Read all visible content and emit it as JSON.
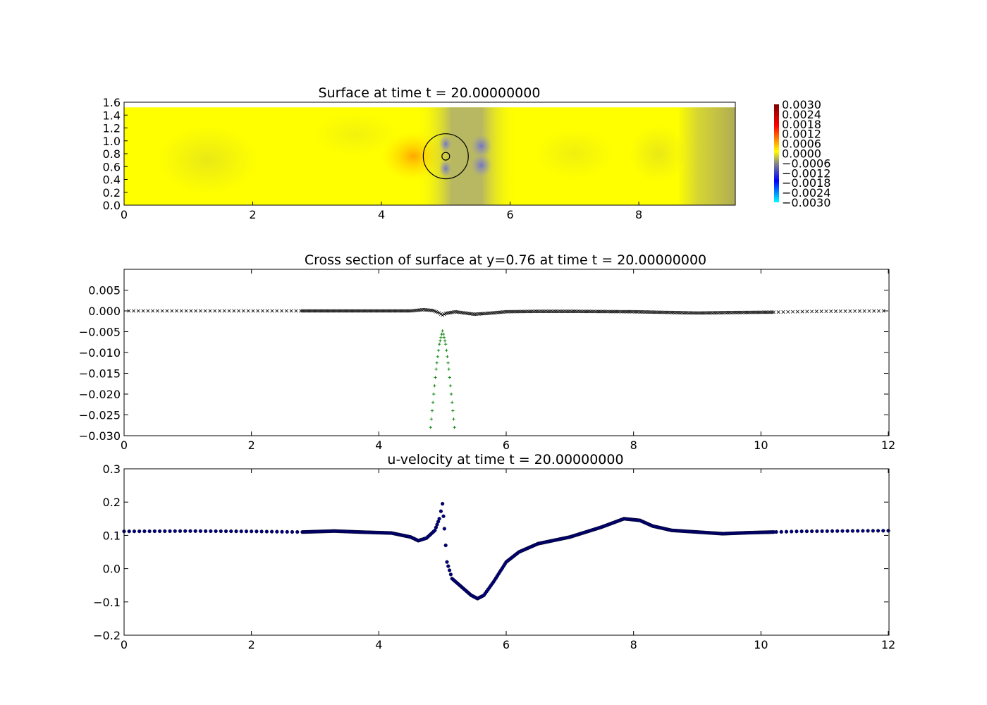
{
  "chart_data": [
    {
      "type": "heatmap",
      "title": "Surface at time t =    20.00000000",
      "xlim": [
        0,
        9.5
      ],
      "ylim": [
        0,
        1.6
      ],
      "xticks": [
        "0",
        "2",
        "4",
        "6",
        "8"
      ],
      "yticks": [
        "0.0",
        "0.2",
        "0.4",
        "0.6",
        "0.8",
        "1.0",
        "1.2",
        "1.4",
        "1.6"
      ],
      "domain_y_max": 1.52,
      "circle": {
        "center": [
          5.0,
          0.76
        ],
        "radius": 0.35
      },
      "inner_circle": {
        "center": [
          5.0,
          0.76
        ],
        "radius": 0.06
      },
      "colorbar": {
        "ticks": [
          "0.0030",
          "0.0024",
          "0.0018",
          "0.0012",
          "0.0006",
          "0.0000",
          "−0.0006",
          "−0.0012",
          "−0.0018",
          "−0.0024",
          "−0.0030"
        ],
        "range": [
          -0.003,
          0.003
        ],
        "colors": [
          "#00ffff",
          "#0000ff",
          "#888888",
          "#ffff00",
          "#ff0000",
          "#800000"
        ]
      }
    },
    {
      "type": "scatter",
      "title": "Cross section of surface at y=0.76 at time t =    20.00000000",
      "xlim": [
        0,
        12
      ],
      "ylim": [
        -0.03,
        0.01
      ],
      "xticks": [
        "0",
        "2",
        "4",
        "6",
        "8",
        "10",
        "12"
      ],
      "yticks": [
        "0.005",
        "0.000",
        "−0.005",
        "−0.010",
        "−0.015",
        "−0.020",
        "−0.025",
        "−0.030"
      ],
      "series": [
        {
          "marker": "x",
          "color": "#000000",
          "points": [
            [
              0,
              0.0
            ],
            [
              0.5,
              0.0
            ],
            [
              1.0,
              0.0
            ],
            [
              1.5,
              0.0
            ],
            [
              2.0,
              0.0
            ],
            [
              2.5,
              0.0
            ],
            [
              2.8,
              0.0
            ],
            [
              3.5,
              0.0
            ],
            [
              4.0,
              0.0
            ],
            [
              4.5,
              0.0
            ],
            [
              4.7,
              0.0003
            ],
            [
              4.85,
              0.0001
            ],
            [
              4.95,
              -0.0005
            ],
            [
              5.0,
              -0.001
            ],
            [
              5.05,
              -0.0006
            ],
            [
              5.2,
              -0.0002
            ],
            [
              5.5,
              -0.0008
            ],
            [
              5.7,
              -0.0006
            ],
            [
              6.0,
              -0.0002
            ],
            [
              6.5,
              -0.0001
            ],
            [
              7.0,
              -0.0001
            ],
            [
              8.0,
              -0.0002
            ],
            [
              9.0,
              -0.0005
            ],
            [
              9.5,
              -0.0004
            ],
            [
              10.2,
              -0.0003
            ],
            [
              10.5,
              -0.0002
            ],
            [
              11.0,
              -0.0001
            ],
            [
              12.0,
              0.0
            ]
          ]
        },
        {
          "marker": "+",
          "color": "#007f00",
          "points": [
            [
              4.8,
              -0.03
            ],
            [
              4.85,
              -0.022
            ],
            [
              4.9,
              -0.014
            ],
            [
              4.95,
              -0.008
            ],
            [
              5.0,
              -0.0048
            ],
            [
              5.05,
              -0.008
            ],
            [
              5.1,
              -0.014
            ],
            [
              5.15,
              -0.022
            ],
            [
              5.2,
              -0.03
            ]
          ]
        }
      ]
    },
    {
      "type": "scatter",
      "title": "u-velocity at time t =    20.00000000",
      "xlim": [
        0,
        12
      ],
      "ylim": [
        -0.2,
        0.3
      ],
      "xticks": [
        "0",
        "2",
        "4",
        "6",
        "8",
        "10",
        "12"
      ],
      "yticks": [
        "0.3",
        "0.2",
        "0.1",
        "0.0",
        "−0.1",
        "−0.2"
      ],
      "series": [
        {
          "marker": "o",
          "color": "#00007f",
          "points": [
            [
              0,
              0.112
            ],
            [
              1,
              0.113
            ],
            [
              2,
              0.112
            ],
            [
              2.8,
              0.11
            ],
            [
              3.3,
              0.113
            ],
            [
              3.7,
              0.11
            ],
            [
              4.2,
              0.107
            ],
            [
              4.5,
              0.095
            ],
            [
              4.62,
              0.084
            ],
            [
              4.75,
              0.092
            ],
            [
              4.88,
              0.115
            ],
            [
              4.95,
              0.15
            ],
            [
              5.0,
              0.195
            ],
            [
              5.03,
              0.12
            ],
            [
              5.07,
              0.02
            ],
            [
              5.15,
              -0.03
            ],
            [
              5.3,
              -0.055
            ],
            [
              5.45,
              -0.08
            ],
            [
              5.55,
              -0.09
            ],
            [
              5.65,
              -0.08
            ],
            [
              5.8,
              -0.04
            ],
            [
              6.0,
              0.02
            ],
            [
              6.2,
              0.05
            ],
            [
              6.5,
              0.075
            ],
            [
              7.0,
              0.095
            ],
            [
              7.5,
              0.125
            ],
            [
              7.85,
              0.15
            ],
            [
              8.1,
              0.145
            ],
            [
              8.3,
              0.128
            ],
            [
              8.6,
              0.115
            ],
            [
              9.0,
              0.11
            ],
            [
              9.4,
              0.105
            ],
            [
              9.8,
              0.108
            ],
            [
              10.2,
              0.11
            ],
            [
              10.6,
              0.112
            ],
            [
              11.2,
              0.113
            ],
            [
              12,
              0.114
            ]
          ]
        }
      ]
    }
  ]
}
